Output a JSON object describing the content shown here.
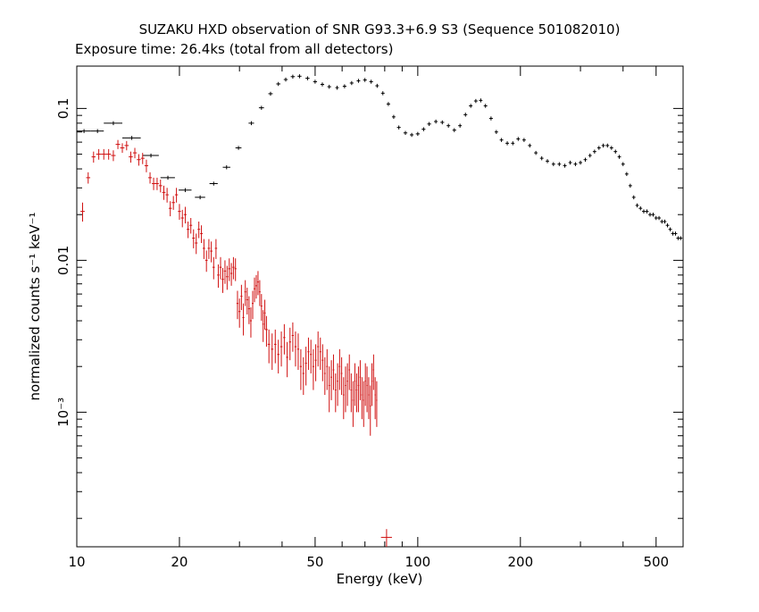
{
  "chart_data": {
    "type": "scatter",
    "title": "SUZAKU HXD observation of SNR G93.3+6.9 S3 (Sequence 501082010)",
    "subtitle": "Exposure time: 26.4ks (total from all detectors)",
    "xlabel": "Energy (keV)",
    "ylabel": "normalized counts s⁻¹ keV⁻¹",
    "x_scale": "log",
    "y_scale": "log",
    "xlim": [
      10,
      600
    ],
    "ylim": [
      0.00013,
      0.19
    ],
    "x_ticks": [
      {
        "value": 10,
        "label": "10"
      },
      {
        "value": 20,
        "label": "20"
      },
      {
        "value": 50,
        "label": "50"
      },
      {
        "value": 100,
        "label": "100"
      },
      {
        "value": 200,
        "label": "200"
      },
      {
        "value": 500,
        "label": "500"
      }
    ],
    "y_ticks": [
      {
        "value": 0.1,
        "label": "0.1"
      },
      {
        "value": 0.01,
        "label": "0.01"
      },
      {
        "value": 0.001,
        "label": "10⁻³"
      }
    ],
    "grid": false,
    "series": [
      {
        "color": "#000000",
        "points": [
          [
            10.5,
            0.071,
            0.5
          ],
          [
            11.5,
            0.071,
            0.5
          ],
          [
            12.8,
            0.08,
            0.8
          ],
          [
            14.5,
            0.064,
            0.9
          ],
          [
            16.5,
            0.049,
            0.9
          ],
          [
            18.5,
            0.035,
            0.9
          ],
          [
            20.8,
            0.029,
            0.9
          ],
          [
            23.0,
            0.026,
            0.8
          ],
          [
            25.2,
            0.032,
            0.7
          ],
          [
            27.5,
            0.041,
            0.7
          ],
          [
            29.8,
            0.055,
            0.6
          ],
          [
            32.5,
            0.08,
            0.6
          ],
          [
            34.8,
            0.101,
            0.6
          ],
          [
            37.0,
            0.125,
            0.55
          ],
          [
            39.0,
            0.145,
            0.55
          ],
          [
            41.0,
            0.155,
            0.55
          ],
          [
            43.0,
            0.162,
            0.6
          ],
          [
            45.0,
            0.163,
            0.6
          ],
          [
            47.5,
            0.158,
            0.65
          ],
          [
            50.0,
            0.15,
            0.65
          ],
          [
            52.5,
            0.144,
            0.65
          ],
          [
            55.0,
            0.139,
            0.7
          ],
          [
            58.0,
            0.137,
            0.7
          ],
          [
            61.0,
            0.14,
            0.75
          ],
          [
            64.0,
            0.147,
            0.8
          ],
          [
            67.0,
            0.152,
            0.8
          ],
          [
            70.0,
            0.154,
            0.85
          ],
          [
            73.0,
            0.15,
            0.9
          ],
          [
            76.0,
            0.141,
            0.9
          ],
          [
            79.0,
            0.126,
            0.95
          ],
          [
            82.0,
            0.107,
            1.0
          ],
          [
            85.0,
            0.088,
            1.0
          ],
          [
            88.0,
            0.075,
            1.1
          ],
          [
            92.0,
            0.069,
            1.2
          ],
          [
            96.0,
            0.067,
            1.2
          ],
          [
            100.0,
            0.068,
            1.3
          ],
          [
            104.0,
            0.073,
            1.3
          ],
          [
            108.0,
            0.079,
            1.4
          ],
          [
            113.0,
            0.082,
            1.4
          ],
          [
            118.0,
            0.081,
            1.5
          ],
          [
            123.0,
            0.077,
            1.5
          ],
          [
            128.0,
            0.072,
            1.6
          ],
          [
            133.0,
            0.077,
            1.6
          ],
          [
            138.0,
            0.091,
            1.7
          ],
          [
            143.0,
            0.104,
            1.7
          ],
          [
            148.0,
            0.112,
            1.8
          ],
          [
            153.0,
            0.113,
            1.8
          ],
          [
            158.0,
            0.104,
            1.9
          ],
          [
            164.0,
            0.086,
            2.0
          ],
          [
            170.0,
            0.07,
            2.0
          ],
          [
            176.0,
            0.062,
            2.1
          ],
          [
            183.0,
            0.059,
            2.2
          ],
          [
            190.0,
            0.059,
            2.2
          ],
          [
            197.0,
            0.063,
            2.3
          ],
          [
            205.0,
            0.062,
            2.4
          ],
          [
            213.0,
            0.057,
            2.5
          ],
          [
            222.0,
            0.051,
            2.6
          ],
          [
            231.0,
            0.047,
            2.7
          ],
          [
            240.0,
            0.045,
            2.8
          ],
          [
            250.0,
            0.043,
            2.9
          ],
          [
            260.0,
            0.043,
            3.0
          ],
          [
            270.0,
            0.042,
            3.2
          ],
          [
            280.0,
            0.044,
            3.3
          ],
          [
            290.0,
            0.043,
            3.4
          ],
          [
            300.0,
            0.044,
            3.5
          ],
          [
            310.0,
            0.046,
            3.6
          ],
          [
            320.0,
            0.049,
            3.7
          ],
          [
            330.0,
            0.052,
            3.9
          ],
          [
            340.0,
            0.055,
            4.0
          ],
          [
            350.0,
            0.057,
            4.1
          ],
          [
            360.0,
            0.057,
            4.2
          ],
          [
            370.0,
            0.055,
            4.3
          ],
          [
            380.0,
            0.052,
            4.4
          ],
          [
            390.0,
            0.048,
            4.5
          ],
          [
            400.0,
            0.043,
            4.7
          ],
          [
            410.0,
            0.037,
            4.8
          ],
          [
            420.0,
            0.031,
            4.9
          ],
          [
            430.0,
            0.026,
            5.0
          ],
          [
            440.0,
            0.023,
            5.1
          ],
          [
            450.0,
            0.022,
            5.3
          ],
          [
            460.0,
            0.021,
            5.4
          ],
          [
            470.0,
            0.021,
            5.5
          ],
          [
            480.0,
            0.02,
            5.6
          ],
          [
            490.0,
            0.02,
            5.7
          ],
          [
            500.0,
            0.019,
            5.8
          ],
          [
            510.0,
            0.019,
            6.0
          ],
          [
            520.0,
            0.018,
            6.1
          ],
          [
            530.0,
            0.018,
            6.2
          ],
          [
            540.0,
            0.017,
            6.3
          ],
          [
            550.0,
            0.016,
            6.4
          ],
          [
            560.0,
            0.015,
            6.5
          ],
          [
            570.0,
            0.015,
            6.6
          ],
          [
            580.0,
            0.014,
            6.8
          ],
          [
            590.0,
            0.014,
            6.9
          ]
        ]
      },
      {
        "color": "#d01010",
        "points": [
          [
            10.4,
            0.021,
            0.15,
            0.003
          ],
          [
            10.8,
            0.035,
            0.15,
            0.003
          ],
          [
            11.2,
            0.048,
            0.15,
            0.004
          ],
          [
            11.6,
            0.05,
            0.2,
            0.004
          ],
          [
            12.0,
            0.05,
            0.2,
            0.004
          ],
          [
            12.4,
            0.05,
            0.2,
            0.004
          ],
          [
            12.8,
            0.049,
            0.2,
            0.004
          ],
          [
            13.2,
            0.058,
            0.2,
            0.004
          ],
          [
            13.6,
            0.055,
            0.2,
            0.004
          ],
          [
            14.0,
            0.057,
            0.2,
            0.004
          ],
          [
            14.4,
            0.048,
            0.2,
            0.004
          ],
          [
            14.8,
            0.051,
            0.2,
            0.004
          ],
          [
            15.2,
            0.046,
            0.2,
            0.004
          ],
          [
            15.6,
            0.047,
            0.2,
            0.004
          ],
          [
            16.0,
            0.042,
            0.2,
            0.004
          ],
          [
            16.4,
            0.035,
            0.2,
            0.003
          ],
          [
            16.8,
            0.032,
            0.2,
            0.003
          ],
          [
            17.2,
            0.032,
            0.2,
            0.003
          ],
          [
            17.6,
            0.031,
            0.2,
            0.003
          ],
          [
            18.0,
            0.028,
            0.2,
            0.003
          ],
          [
            18.4,
            0.027,
            0.2,
            0.003
          ],
          [
            18.8,
            0.022,
            0.2,
            0.0025
          ],
          [
            19.2,
            0.024,
            0.2,
            0.0025
          ],
          [
            19.6,
            0.027,
            0.2,
            0.003
          ],
          [
            20.0,
            0.021,
            0.2,
            0.0025
          ],
          [
            20.4,
            0.019,
            0.2,
            0.0025
          ],
          [
            20.8,
            0.02,
            0.2,
            0.0025
          ],
          [
            21.2,
            0.016,
            0.2,
            0.002
          ],
          [
            21.6,
            0.017,
            0.2,
            0.002
          ],
          [
            22.0,
            0.014,
            0.2,
            0.002
          ],
          [
            22.4,
            0.013,
            0.2,
            0.002
          ],
          [
            22.8,
            0.016,
            0.2,
            0.002
          ],
          [
            23.2,
            0.015,
            0.2,
            0.002
          ],
          [
            23.6,
            0.012,
            0.2,
            0.0018
          ],
          [
            24.0,
            0.01,
            0.2,
            0.0016
          ],
          [
            24.4,
            0.012,
            0.2,
            0.0018
          ],
          [
            24.8,
            0.0115,
            0.2,
            0.0018
          ],
          [
            25.2,
            0.009,
            0.2,
            0.0015
          ],
          [
            25.6,
            0.012,
            0.2,
            0.0018
          ],
          [
            26.0,
            0.008,
            0.2,
            0.0014
          ],
          [
            26.4,
            0.009,
            0.2,
            0.0015
          ],
          [
            26.8,
            0.0075,
            0.2,
            0.0014
          ],
          [
            27.2,
            0.0085,
            0.2,
            0.0015
          ],
          [
            27.6,
            0.0078,
            0.2,
            0.0014
          ],
          [
            28.0,
            0.0088,
            0.2,
            0.0015
          ],
          [
            28.4,
            0.0082,
            0.2,
            0.0014
          ],
          [
            28.8,
            0.009,
            0.2,
            0.0015
          ],
          [
            29.2,
            0.0088,
            0.2,
            0.0015
          ],
          [
            29.6,
            0.0052,
            0.2,
            0.0011
          ],
          [
            30.0,
            0.0046,
            0.2,
            0.001
          ],
          [
            30.4,
            0.0058,
            0.2,
            0.0011
          ],
          [
            30.8,
            0.0042,
            0.2,
            0.001
          ],
          [
            31.2,
            0.0062,
            0.2,
            0.0012
          ],
          [
            31.6,
            0.0055,
            0.2,
            0.0011
          ],
          [
            32.0,
            0.0048,
            0.2,
            0.001
          ],
          [
            32.4,
            0.004,
            0.2,
            0.0009
          ],
          [
            32.8,
            0.0052,
            0.2,
            0.0011
          ],
          [
            33.2,
            0.0065,
            0.2,
            0.0012
          ],
          [
            33.6,
            0.0068,
            0.2,
            0.0012
          ],
          [
            34.0,
            0.0072,
            0.2,
            0.0013
          ],
          [
            34.4,
            0.0062,
            0.2,
            0.0012
          ],
          [
            34.8,
            0.005,
            0.2,
            0.001
          ],
          [
            35.2,
            0.0038,
            0.2,
            0.0009
          ],
          [
            35.6,
            0.0045,
            0.2,
            0.001
          ],
          [
            36.0,
            0.0035,
            0.3,
            0.0008
          ],
          [
            36.6,
            0.0028,
            0.3,
            0.0007
          ],
          [
            37.4,
            0.0026,
            0.3,
            0.0007
          ],
          [
            38.2,
            0.0028,
            0.3,
            0.0007
          ],
          [
            39.0,
            0.0024,
            0.3,
            0.0006
          ],
          [
            39.8,
            0.0027,
            0.3,
            0.0007
          ],
          [
            40.6,
            0.0031,
            0.3,
            0.0007
          ],
          [
            41.4,
            0.0023,
            0.3,
            0.0006
          ],
          [
            42.2,
            0.0029,
            0.3,
            0.0007
          ],
          [
            43.0,
            0.0032,
            0.3,
            0.0007
          ],
          [
            43.8,
            0.0027,
            0.3,
            0.0007
          ],
          [
            44.6,
            0.0026,
            0.3,
            0.0007
          ],
          [
            45.4,
            0.002,
            0.3,
            0.0006
          ],
          [
            46.2,
            0.0018,
            0.3,
            0.0005
          ],
          [
            47.0,
            0.0021,
            0.3,
            0.0006
          ],
          [
            47.8,
            0.0025,
            0.3,
            0.0006
          ],
          [
            48.6,
            0.0024,
            0.3,
            0.0006
          ],
          [
            49.4,
            0.002,
            0.3,
            0.0006
          ],
          [
            50.2,
            0.0022,
            0.3,
            0.0006
          ],
          [
            51.0,
            0.0027,
            0.3,
            0.0007
          ],
          [
            51.8,
            0.0025,
            0.3,
            0.0006
          ],
          [
            52.6,
            0.0022,
            0.3,
            0.0006
          ],
          [
            53.4,
            0.0018,
            0.3,
            0.0005
          ],
          [
            54.2,
            0.002,
            0.3,
            0.0006
          ],
          [
            55.0,
            0.0015,
            0.3,
            0.0005
          ],
          [
            55.8,
            0.0017,
            0.3,
            0.0005
          ],
          [
            56.6,
            0.0019,
            0.3,
            0.0005
          ],
          [
            57.4,
            0.0014,
            0.3,
            0.0004
          ],
          [
            58.2,
            0.0016,
            0.3,
            0.0005
          ],
          [
            59.0,
            0.002,
            0.3,
            0.0006
          ],
          [
            59.8,
            0.0018,
            0.3,
            0.0005
          ],
          [
            60.6,
            0.0013,
            0.3,
            0.0004
          ],
          [
            61.4,
            0.0015,
            0.3,
            0.0005
          ],
          [
            62.2,
            0.0016,
            0.3,
            0.0005
          ],
          [
            63.0,
            0.0019,
            0.3,
            0.0005
          ],
          [
            63.8,
            0.0014,
            0.3,
            0.0004
          ],
          [
            64.6,
            0.0012,
            0.3,
            0.0004
          ],
          [
            65.4,
            0.0016,
            0.3,
            0.0005
          ],
          [
            66.2,
            0.0014,
            0.3,
            0.0004
          ],
          [
            67.0,
            0.0015,
            0.3,
            0.0005
          ],
          [
            67.8,
            0.0017,
            0.3,
            0.0005
          ],
          [
            68.6,
            0.0013,
            0.3,
            0.0004
          ],
          [
            69.4,
            0.0012,
            0.3,
            0.0004
          ],
          [
            70.2,
            0.0016,
            0.3,
            0.0005
          ],
          [
            71.0,
            0.0015,
            0.3,
            0.0005
          ],
          [
            71.8,
            0.0013,
            0.3,
            0.0004
          ],
          [
            72.6,
            0.0011,
            0.3,
            0.0004
          ],
          [
            73.4,
            0.0016,
            0.3,
            0.0005
          ],
          [
            74.2,
            0.0019,
            0.3,
            0.0005
          ],
          [
            75.0,
            0.0013,
            0.3,
            0.0004
          ],
          [
            75.8,
            0.0012,
            0.3,
            0.0004
          ],
          [
            81.0,
            0.00015,
            3.0,
            2e-05
          ]
        ]
      }
    ]
  }
}
